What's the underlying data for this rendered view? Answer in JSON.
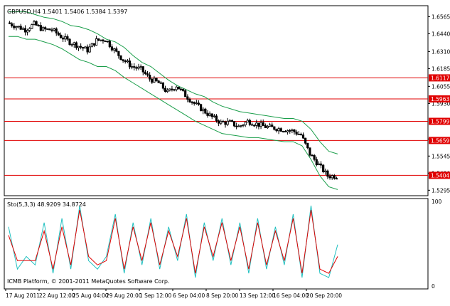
{
  "main_chart": {
    "label": "GBPUSD,H4  1.5401 1.5406 1.5384 1.5397",
    "price_ticks": [
      "1.6565",
      "1.6440",
      "1.6310",
      "1.6185",
      "1.6055",
      "1.5930",
      "1.5670",
      "1.5545",
      "1.5420",
      "1.5295"
    ],
    "price_range": [
      1.5255,
      1.6645
    ],
    "hlines": [
      {
        "label": "1.6117",
        "value": 1.6117
      },
      {
        "label": "1.5963",
        "value": 1.5963
      },
      {
        "label": "1.5799",
        "value": 1.5799
      },
      {
        "label": "1.5659",
        "value": 1.5659
      },
      {
        "label": "1.5404",
        "value": 1.5404
      }
    ],
    "colors": {
      "background": "#ffffff",
      "frame": "#000000",
      "candle": "#000000",
      "bands": "#1a9e4a",
      "hline": "#e00000",
      "hline_label_bg": "#e00000",
      "hline_label_text": "#ffffff"
    }
  },
  "indicator": {
    "label": "Sto(5,3,3) 48.9209 34.8724",
    "ticks": [
      "100",
      "0"
    ],
    "range": [
      0,
      100
    ],
    "colors": {
      "main": "#20c0c0",
      "signal": "#e00000"
    }
  },
  "x_axis_labels": [
    "17 Aug 2011",
    "22 Aug 12:00",
    "25 Aug 04:00",
    "29 Aug 20:00",
    "1 Sep 12:00",
    "6 Sep 04:00",
    "8 Sep 20:00",
    "13 Sep 12:00",
    "16 Sep 04:00",
    "20 Sep 20:00"
  ],
  "copyright": "ICMB Platform, © 2001-2011 MetaQuotes Software Corp.",
  "chart_data": {
    "type": "line",
    "x": [
      0,
      5,
      10,
      15,
      20,
      25,
      30,
      35,
      40,
      45,
      50,
      55,
      60,
      65,
      70,
      75,
      80,
      85,
      90,
      95,
      100,
      105,
      110,
      115,
      120,
      125,
      130,
      135,
      140,
      145,
      150,
      155,
      160,
      165,
      170,
      175,
      180,
      185
    ],
    "series": [
      {
        "values": [
          1.652,
          1.6495,
          1.647,
          1.651,
          1.647,
          1.647,
          1.642,
          1.638,
          1.635,
          1.632,
          1.639,
          1.64,
          1.632,
          1.625,
          1.62,
          1.618,
          1.611,
          1.608,
          1.601,
          1.606,
          1.599,
          1.593,
          1.588,
          1.583,
          1.579,
          1.579,
          1.576,
          1.58,
          1.578,
          1.576,
          1.575,
          1.574,
          1.573,
          1.57,
          1.556,
          1.548,
          1.54,
          1.5397
        ]
      },
      {
        "values": [
          1.66,
          1.66,
          1.66,
          1.658,
          1.656,
          1.655,
          1.653,
          1.65,
          1.649,
          1.647,
          1.644,
          1.64,
          1.638,
          1.634,
          1.628,
          1.623,
          1.62,
          1.615,
          1.61,
          1.606,
          1.603,
          1.6,
          1.598,
          1.594,
          1.591,
          1.589,
          1.587,
          1.586,
          1.585,
          1.584,
          1.583,
          1.582,
          1.582,
          1.58,
          1.574,
          1.565,
          1.558,
          1.556
        ]
      },
      {
        "values": [
          1.642,
          1.642,
          1.64,
          1.64,
          1.638,
          1.636,
          1.633,
          1.629,
          1.625,
          1.623,
          1.62,
          1.62,
          1.617,
          1.612,
          1.608,
          1.604,
          1.6,
          1.596,
          1.592,
          1.588,
          1.584,
          1.58,
          1.577,
          1.574,
          1.571,
          1.57,
          1.569,
          1.568,
          1.568,
          1.567,
          1.566,
          1.565,
          1.565,
          1.562,
          1.552,
          1.54,
          1.532,
          1.53
        ]
      },
      {
        "values": [
          70,
          20,
          35,
          25,
          75,
          15,
          80,
          20,
          95,
          30,
          20,
          35,
          85,
          15,
          75,
          25,
          80,
          20,
          70,
          30,
          85,
          10,
          75,
          30,
          80,
          25,
          75,
          15,
          80,
          20,
          70,
          25,
          85,
          10,
          95,
          15,
          10,
          49
        ]
      },
      {
        "values": [
          60,
          30,
          30,
          30,
          65,
          20,
          70,
          25,
          90,
          35,
          25,
          30,
          80,
          20,
          70,
          30,
          75,
          25,
          65,
          35,
          80,
          15,
          70,
          35,
          75,
          30,
          70,
          20,
          75,
          25,
          65,
          30,
          80,
          15,
          90,
          20,
          15,
          35
        ]
      }
    ]
  }
}
